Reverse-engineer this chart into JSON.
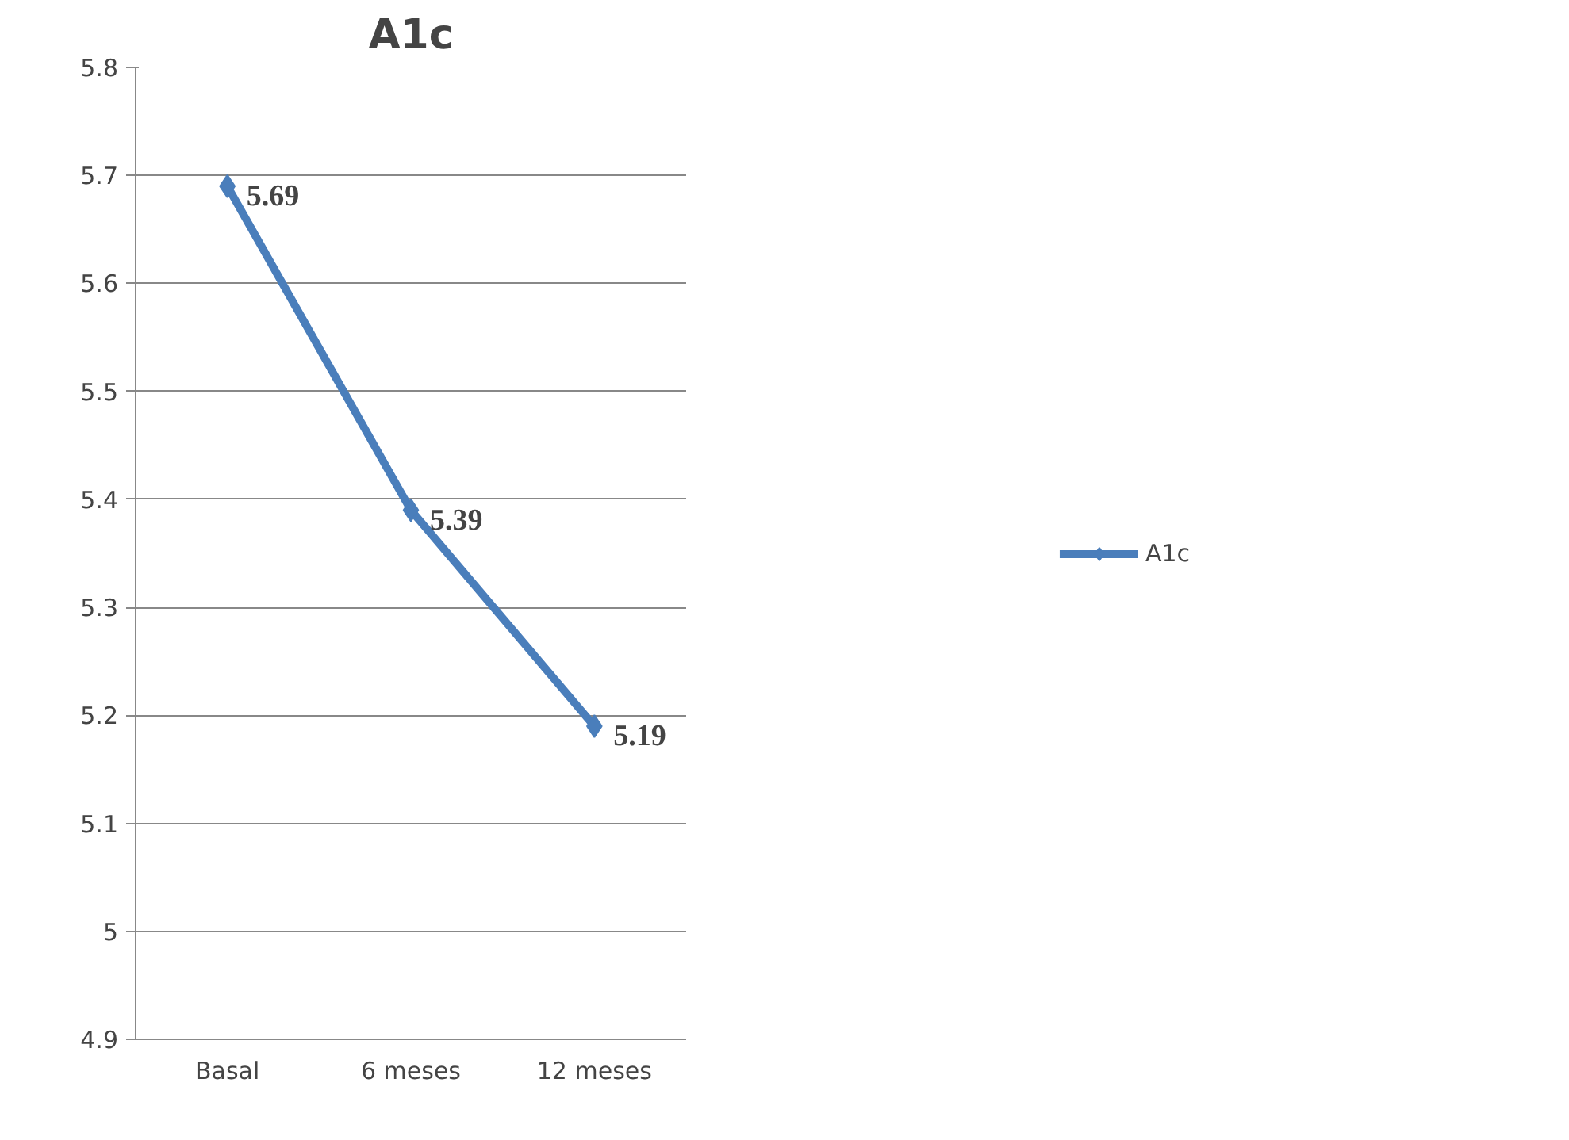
{
  "chart_data": {
    "type": "line",
    "title": "A1c",
    "categories": [
      "Basal",
      "6 meses",
      "12 meses"
    ],
    "series": [
      {
        "name": "A1c",
        "color": "#4a7ebb",
        "values": [
          5.69,
          5.39,
          5.19
        ]
      }
    ],
    "ylim": [
      4.9,
      5.8
    ],
    "yticks": [
      4.9,
      5,
      5.1,
      5.2,
      5.3,
      5.4,
      5.5,
      5.6,
      5.7,
      5.8
    ],
    "grid": "y",
    "legend": "right",
    "marker": "diamond",
    "line_style": "solid",
    "data_labels": true
  }
}
